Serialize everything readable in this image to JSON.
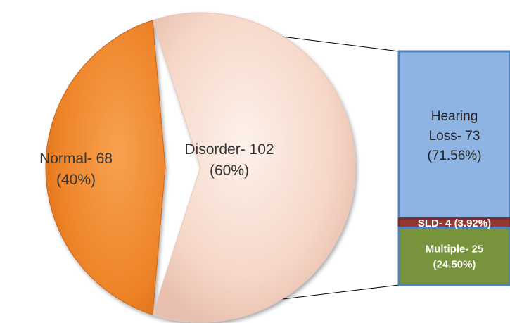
{
  "chart_data": {
    "type": "bar-of-pie",
    "title": "",
    "pie": {
      "slices": [
        {
          "label": "Normal- 68",
          "pct_label": "(40%)",
          "value": 68,
          "color": "#F28A2E"
        },
        {
          "label": "Disorder- 102",
          "pct_label": "(60%)",
          "value": 102,
          "color": "#F8DCCF"
        }
      ]
    },
    "breakdown": {
      "of": "Disorder- 102",
      "segments": [
        {
          "lines": [
            "Hearing",
            "Loss- 73",
            "(71.56%)"
          ],
          "value": 73,
          "percent": 71.56,
          "color": "#8EB4E3",
          "border": "#4F81BD",
          "text_style": "light"
        },
        {
          "lines": [
            "SLD- 4 (3.92%)"
          ],
          "value": 4,
          "percent": 3.92,
          "color": "#953735",
          "border": "#7A2C2A",
          "text_style": "bold"
        },
        {
          "lines": [
            "Multiple- 25",
            "(24.50%)"
          ],
          "value": 25,
          "percent": 24.5,
          "color": "#77933C",
          "border": "#4F81BD",
          "text_style": "bold"
        }
      ]
    }
  }
}
